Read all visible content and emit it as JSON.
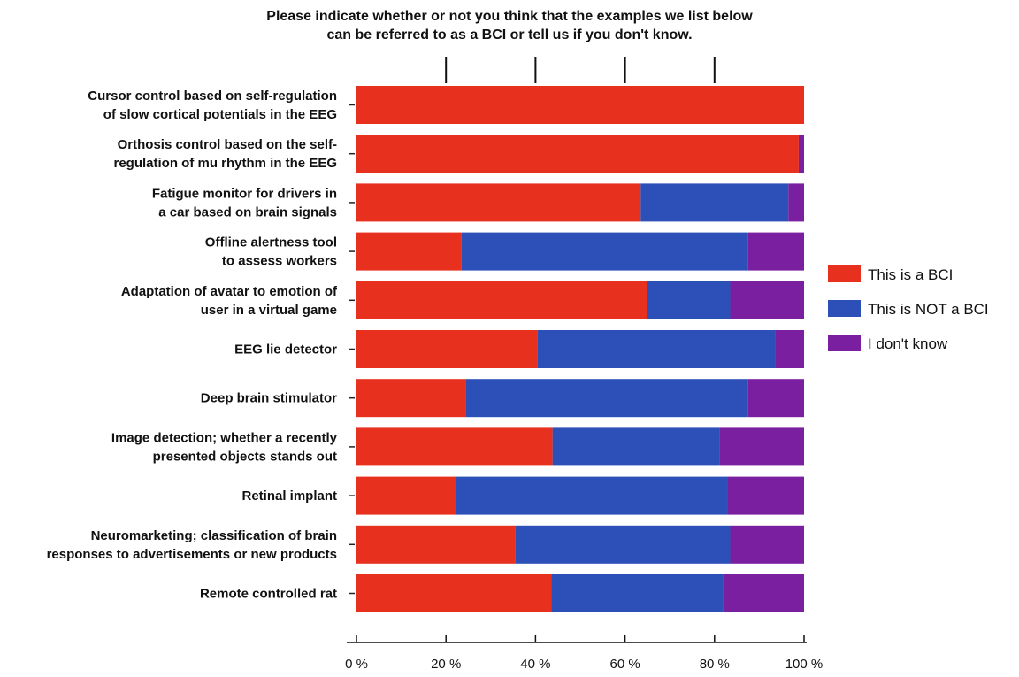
{
  "chart_data": {
    "type": "bar",
    "orientation": "horizontal",
    "stacked": true,
    "title": "Please indicate whether or not you think that the examples we list below\ncan be referred to as a BCI or tell us if you don't know.",
    "categories": [
      "Cursor control based on self-regulation\nof slow cortical potentials in the EEG",
      "Orthosis control based on the self-\nregulation of mu rhythm in the EEG",
      "Fatigue monitor for drivers in\na car based on brain signals",
      "Offline alertness tool\nto assess workers",
      "Adaptation of avatar to emotion of\nuser in a virtual game",
      "EEG lie detector",
      "Deep brain stimulator",
      "Image detection; whether a recently\npresented objects stands out",
      "Retinal implant",
      "Neuromarketing; classification of brain\nresponses to advertisements or new products",
      "Remote controlled rat"
    ],
    "series": [
      {
        "name": "This is a BCI",
        "color": "#e8301e",
        "values": [
          100,
          98.8,
          63.5,
          23.5,
          65,
          40.5,
          24.5,
          43.8,
          22.3,
          35.5,
          43.5
        ]
      },
      {
        "name": "This is NOT a BCI",
        "color": "#2c4fb8",
        "values": [
          0,
          0,
          33,
          64,
          18.5,
          53,
          63,
          37.3,
          60.7,
          48,
          38.5
        ]
      },
      {
        "name": "I don't know",
        "color": "#7a1fa0",
        "values": [
          0,
          1.2,
          3.5,
          12.5,
          16.5,
          6.5,
          12.5,
          18.9,
          17,
          16.5,
          18
        ]
      }
    ],
    "xlim": [
      0,
      100
    ],
    "xticks": [
      "0 %",
      "20 %",
      "40 %",
      "60 %",
      "80 %",
      "100 %"
    ],
    "grid": false,
    "legend_position": "right"
  }
}
